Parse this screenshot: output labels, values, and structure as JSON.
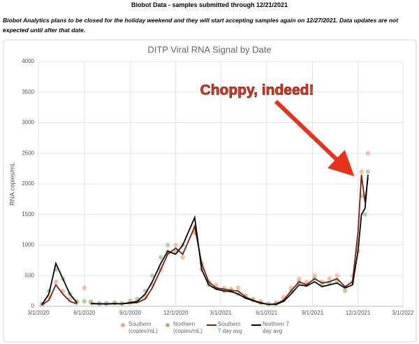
{
  "header": {
    "title": "Biobot Data - samples submitted through 12/21/2021",
    "note": "Biobot Analytics plans to be closed for the holiday weekend and they will start accepting samples again on 12/27/2021.  Data updates are not expected until after that date."
  },
  "chart_data": {
    "type": "line",
    "title": "DITP Viral RNA Signal by Date",
    "y_label": "RNA copies/mL",
    "annotation": "Choppy, indeed!",
    "grid": true,
    "legend": "bottom",
    "x": [
      "3/8/2020",
      "3/22/2020",
      "4/5/2020",
      "4/19/2020",
      "5/3/2020",
      "5/17/2020",
      "6/1/2020",
      "6/14/2020",
      "7/1/2020",
      "7/15/2020",
      "8/1/2020",
      "8/15/2020",
      "9/1/2020",
      "9/15/2020",
      "10/1/2020",
      "10/15/2020",
      "11/1/2020",
      "11/15/2020",
      "12/1/2020",
      "12/15/2020",
      "1/8/2021",
      "1/22/2021",
      "2/5/2021",
      "2/20/2021",
      "3/8/2021",
      "3/22/2021",
      "4/5/2021",
      "4/20/2021",
      "5/5/2021",
      "5/20/2021",
      "6/5/2021",
      "6/20/2021",
      "7/5/2021",
      "7/20/2021",
      "8/5/2021",
      "8/20/2021",
      "9/5/2021",
      "9/20/2021",
      "10/5/2021",
      "10/20/2021",
      "11/5/2021",
      "11/20/2021",
      "12/1/2021",
      "12/8/2021",
      "12/15/2021",
      "12/21/2021"
    ],
    "xlim": [
      "3/1/2020",
      "3/1/2022"
    ],
    "xticks": [
      "3/1/2020",
      "6/1/2020",
      "9/1/2020",
      "12/1/2020",
      "3/1/2021",
      "6/1/2021",
      "9/1/2021",
      "12/1/2021",
      "3/1/2022"
    ],
    "ylim": [
      0,
      4000
    ],
    "yticks": [
      0,
      500,
      1000,
      1500,
      2000,
      2500,
      3000,
      3500,
      4000
    ],
    "series": [
      {
        "name": "Southern (copies/mL)",
        "type": "scatter",
        "color": "#f4a582",
        "values": [
          30,
          150,
          400,
          250,
          120,
          60,
          300,
          80,
          50,
          40,
          50,
          40,
          60,
          80,
          150,
          350,
          600,
          900,
          1000,
          800,
          1300,
          600,
          400,
          350,
          300,
          250,
          300,
          180,
          120,
          80,
          40,
          60,
          150,
          300,
          450,
          400,
          500,
          400,
          450,
          500,
          300,
          500,
          1000,
          2200,
          1800,
          2500
        ]
      },
      {
        "name": "Northern (copies/mL)",
        "type": "scatter",
        "color": "#93c47d",
        "values": [
          40,
          250,
          600,
          450,
          200,
          80,
          80,
          60,
          40,
          50,
          60,
          50,
          90,
          120,
          250,
          500,
          800,
          1000,
          900,
          1000,
          1200,
          700,
          350,
          300,
          250,
          280,
          200,
          150,
          100,
          60,
          40,
          40,
          100,
          250,
          400,
          350,
          450,
          350,
          380,
          400,
          250,
          400,
          900,
          1800,
          1500,
          2200
        ]
      },
      {
        "name": "Southern 7 day avg",
        "type": "line",
        "color": "#7b1c12",
        "values": [
          20,
          100,
          350,
          200,
          80,
          40,
          null,
          50,
          40,
          35,
          40,
          40,
          50,
          60,
          120,
          300,
          600,
          850,
          950,
          850,
          1300,
          700,
          400,
          300,
          280,
          260,
          250,
          150,
          100,
          60,
          30,
          40,
          100,
          250,
          400,
          350,
          450,
          380,
          400,
          450,
          320,
          400,
          1200,
          2150,
          1700,
          2100
        ]
      },
      {
        "name": "Northern 7 day avg",
        "type": "line",
        "color": "#000000",
        "values": [
          25,
          200,
          700,
          450,
          200,
          60,
          null,
          40,
          40,
          40,
          45,
          40,
          60,
          80,
          200,
          400,
          700,
          900,
          850,
          1000,
          1450,
          600,
          350,
          280,
          250,
          240,
          200,
          130,
          90,
          50,
          30,
          30,
          80,
          200,
          350,
          330,
          400,
          320,
          350,
          380,
          300,
          350,
          900,
          1500,
          1600,
          2150
        ]
      }
    ]
  }
}
